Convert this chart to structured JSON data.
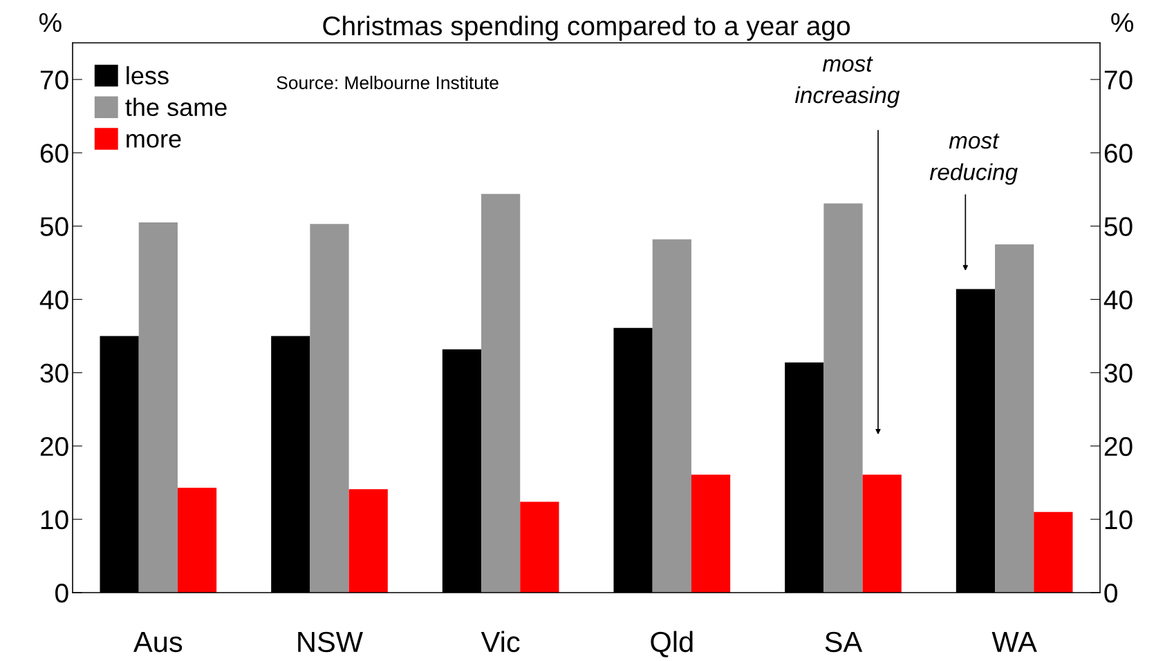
{
  "chart_data": {
    "type": "bar",
    "title": "Christmas spending compared to a year ago",
    "ylabel": "%",
    "y2label": "%",
    "categories": [
      "Aus",
      "NSW",
      "Vic",
      "Qld",
      "SA",
      "WA"
    ],
    "series": [
      {
        "name": "less",
        "color": "#000000",
        "values": [
          35,
          35,
          33.2,
          36.1,
          31.4,
          41.4
        ]
      },
      {
        "name": "the same",
        "color": "#969696",
        "values": [
          50.5,
          50.3,
          54.4,
          48.2,
          53.1,
          47.5
        ]
      },
      {
        "name": "more",
        "color": "#ff0000",
        "values": [
          14.3,
          14.1,
          12.4,
          16.1,
          16.1,
          11.0
        ]
      }
    ],
    "ylim": [
      0,
      75
    ],
    "yticks": [
      0,
      10,
      20,
      30,
      40,
      50,
      60,
      70
    ],
    "y2lim": [
      0,
      75
    ],
    "y2ticks": [
      0,
      10,
      20,
      30,
      40,
      50,
      60,
      70
    ],
    "annotations": [
      "Source: Melbourne Institute",
      "most\nincreasing",
      "most\nreducing"
    ],
    "legend": "top left",
    "grid": false
  }
}
